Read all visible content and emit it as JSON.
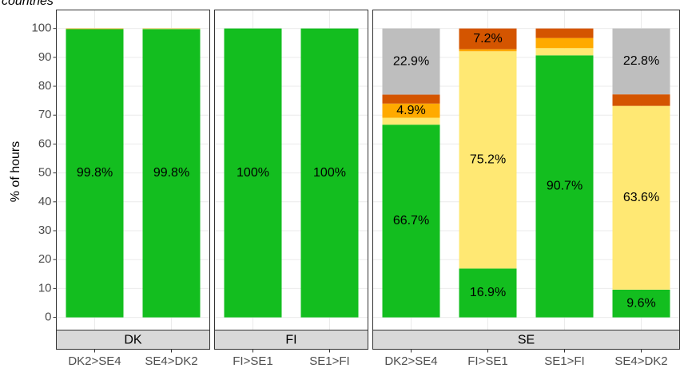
{
  "chart_data": {
    "type": "stacked_bar",
    "title": "countries",
    "y_label": "% of hours",
    "facets": [
      {
        "label": "DK",
        "categories": [
          "DK2>SE4",
          "SE4>DK2"
        ]
      },
      {
        "label": "FI",
        "categories": [
          "FI>SE1",
          "SE1>FI"
        ]
      },
      {
        "label": "SE",
        "categories": [
          "DK2>SE4",
          "FI>SE1",
          "SE1>FI",
          "SE4>DK2"
        ]
      }
    ],
    "series": [
      {
        "color": "#13be1f",
        "values": [
          99.8,
          99.8,
          100,
          100,
          66.7,
          16.9,
          90.7,
          9.6
        ],
        "value_labels": [
          "99.8%",
          "99.8%",
          "100%",
          "100%",
          "66.7%",
          "16.9%",
          "90.7%",
          "9.6%"
        ]
      },
      {
        "color": "#ffe873",
        "values": [
          0,
          0.1,
          0,
          0,
          2.4,
          75.2,
          2.5,
          63.6
        ],
        "value_labels": [
          null,
          null,
          null,
          null,
          null,
          "75.2%",
          null,
          "63.6%"
        ]
      },
      {
        "color": "#ffaa00",
        "values": [
          0.2,
          0.1,
          0,
          0,
          4.9,
          0.7,
          3.5,
          0
        ],
        "value_labels": [
          null,
          null,
          null,
          null,
          "4.9%",
          null,
          null,
          null
        ]
      },
      {
        "color": "#d45500",
        "values": [
          0,
          0,
          0,
          0,
          3.1,
          7.2,
          3.3,
          4.0
        ],
        "value_labels": [
          null,
          null,
          null,
          null,
          null,
          "7.2%",
          null,
          null
        ]
      },
      {
        "color": "#bebebe",
        "values": [
          0,
          0,
          0,
          0,
          22.9,
          0,
          0,
          22.8
        ],
        "value_labels": [
          null,
          null,
          null,
          null,
          "22.9%",
          null,
          null,
          "22.8%"
        ]
      }
    ],
    "ylim": [
      -4.4,
      106.4
    ],
    "yticks": [
      0,
      10,
      20,
      30,
      40,
      50,
      60,
      70,
      80,
      90,
      100
    ],
    "grid": true
  }
}
